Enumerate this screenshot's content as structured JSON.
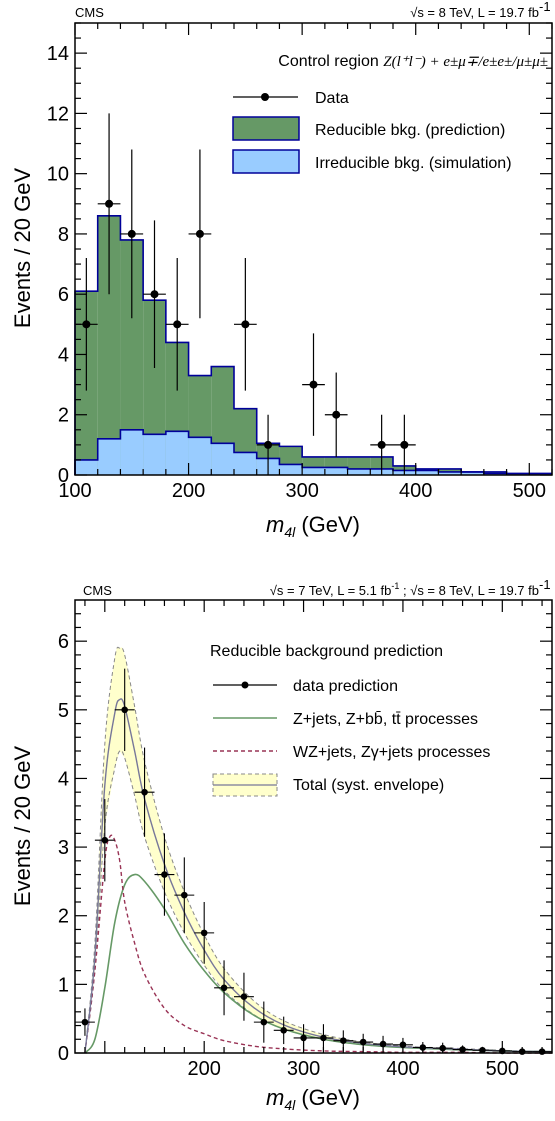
{
  "chart_data": [
    {
      "type": "bar",
      "experiment": "CMS",
      "energy_label": "√s = 8 TeV, L = 19.7 fb",
      "energy_sup": "-1",
      "xlabel_main": "m",
      "xlabel_sub": "4l",
      "xlabel_unit": " (GeV)",
      "ylabel": "Events / 20 GeV",
      "xlim": [
        100,
        520
      ],
      "ylim": [
        0,
        15
      ],
      "xticks": [
        "100",
        "200",
        "300",
        "400",
        "500"
      ],
      "yticks": [
        "0",
        "2",
        "4",
        "6",
        "8",
        "10",
        "12",
        "14"
      ],
      "legend_title_prefix": "Control region ",
      "legend_title_formula": "Z(l⁺l⁻) + e±μ∓/e±e±/μ±μ±",
      "legend_position": "top-right",
      "bin_edges": [
        100,
        120,
        140,
        160,
        180,
        200,
        220,
        240,
        260,
        280,
        300,
        320,
        340,
        360,
        380,
        400,
        420,
        440,
        460,
        480,
        500,
        520
      ],
      "series": [
        {
          "name": "Data",
          "x": [
            110,
            130,
            150,
            170,
            190,
            210,
            250,
            270,
            310,
            330,
            370,
            390
          ],
          "y": [
            5,
            9,
            8,
            6,
            5,
            8,
            5,
            1,
            3,
            2,
            1,
            1
          ],
          "err": [
            2.2,
            3.0,
            2.8,
            2.45,
            2.2,
            2.8,
            2.2,
            1.0,
            1.7,
            1.4,
            1.0,
            1.0
          ],
          "color": "#000000"
        },
        {
          "name": "Reducible bkg. (prediction)",
          "values": [
            6.1,
            8.6,
            7.8,
            5.8,
            4.4,
            3.3,
            3.6,
            2.2,
            1.05,
            0.95,
            0.6,
            0.6,
            0.6,
            0.6,
            0.3,
            0.2,
            0.2,
            0.1,
            0.1,
            0.05,
            0.05
          ],
          "color": "#669966"
        },
        {
          "name": "Irreducible bkg. (simulation)",
          "values": [
            0.5,
            1.2,
            1.5,
            1.35,
            1.45,
            1.25,
            1.05,
            0.75,
            0.55,
            0.35,
            0.25,
            0.25,
            0.2,
            0.2,
            0.15,
            0.15,
            0.1,
            0.1,
            0.05,
            0.05,
            0.05
          ],
          "color": "#99ccff"
        }
      ]
    },
    {
      "type": "line",
      "experiment": "CMS",
      "energy_label_1": "√s = 7 TeV, L = 5.1 fb",
      "energy_sup_1": "-1",
      "energy_sep": " ; ",
      "energy_label_2": "√s = 8 TeV, L = 19.7 fb",
      "energy_sup_2": "-1",
      "xlabel_main": "m",
      "xlabel_sub": "4l",
      "xlabel_unit": " (GeV)",
      "ylabel": "Events / 20 GeV",
      "xlim": [
        70,
        550
      ],
      "ylim": [
        0,
        6.6
      ],
      "xticks": [
        "200",
        "300",
        "400",
        "500"
      ],
      "yticks": [
        "0",
        "1",
        "2",
        "3",
        "4",
        "5",
        "6"
      ],
      "legend_title": "Reducible background prediction",
      "legend_position": "top-right",
      "series": [
        {
          "name": "data prediction",
          "x": [
            80,
            100,
            120,
            140,
            160,
            180,
            200,
            220,
            240,
            260,
            280,
            300,
            320,
            340,
            360,
            380,
            400,
            420,
            440,
            460,
            480,
            500,
            520,
            540
          ],
          "y": [
            0.45,
            3.1,
            5.0,
            3.8,
            2.6,
            2.3,
            1.75,
            0.95,
            0.82,
            0.45,
            0.33,
            0.22,
            0.22,
            0.18,
            0.16,
            0.13,
            0.12,
            0.08,
            0.07,
            0.05,
            0.04,
            0.03,
            0.02,
            0.02
          ],
          "err": [
            0.2,
            0.6,
            0.6,
            0.65,
            0.6,
            0.55,
            0.45,
            0.4,
            0.35,
            0.3,
            0.2,
            0.2,
            0.2,
            0.15,
            0.12,
            0.12,
            0.1,
            0.08,
            0.08,
            0.06,
            0.05,
            0.05,
            0.04,
            0.04
          ],
          "color": "#000000"
        },
        {
          "name": "Z+jets, Z+bb̄, tt̄  processes",
          "x": [
            80,
            90,
            100,
            110,
            120,
            130,
            140,
            160,
            180,
            200,
            220,
            250,
            280,
            320,
            360,
            400,
            450,
            500,
            550
          ],
          "y": [
            0.0,
            0.2,
            0.95,
            1.9,
            2.45,
            2.6,
            2.5,
            2.1,
            1.6,
            1.2,
            0.88,
            0.55,
            0.35,
            0.2,
            0.12,
            0.08,
            0.05,
            0.03,
            0.02
          ],
          "color": "#669966"
        },
        {
          "name": "WZ+jets, Zγ+jets processes",
          "x": [
            80,
            90,
            100,
            105,
            110,
            115,
            120,
            130,
            140,
            160,
            180,
            200,
            220,
            250,
            280,
            320,
            360,
            400,
            450,
            500,
            550
          ],
          "y": [
            0.0,
            1.2,
            2.8,
            3.15,
            3.1,
            2.8,
            2.2,
            1.6,
            1.15,
            0.65,
            0.4,
            0.28,
            0.18,
            0.1,
            0.06,
            0.03,
            0.02,
            0.01,
            0.01,
            0.0,
            0.0
          ],
          "color": "#993355"
        },
        {
          "name": "Total (syst. envelope)",
          "x": [
            80,
            90,
            100,
            110,
            115,
            120,
            130,
            140,
            160,
            180,
            200,
            220,
            250,
            280,
            320,
            360,
            400,
            450,
            500,
            550
          ],
          "y": [
            0.0,
            1.4,
            3.9,
            4.95,
            5.15,
            5.05,
            4.4,
            3.7,
            2.75,
            2.05,
            1.5,
            1.07,
            0.66,
            0.41,
            0.23,
            0.14,
            0.09,
            0.06,
            0.03,
            0.02
          ],
          "upper": [
            0.0,
            1.6,
            4.5,
            5.75,
            5.9,
            5.8,
            5.05,
            4.25,
            3.15,
            2.35,
            1.72,
            1.23,
            0.76,
            0.47,
            0.27,
            0.16,
            0.1,
            0.07,
            0.04,
            0.02
          ],
          "lower": [
            0.0,
            1.2,
            3.3,
            4.15,
            4.4,
            4.3,
            3.75,
            3.15,
            2.35,
            1.75,
            1.28,
            0.91,
            0.56,
            0.35,
            0.2,
            0.12,
            0.08,
            0.05,
            0.03,
            0.02
          ],
          "color": "#ffffcc",
          "edge_color": "#888888"
        }
      ]
    }
  ]
}
